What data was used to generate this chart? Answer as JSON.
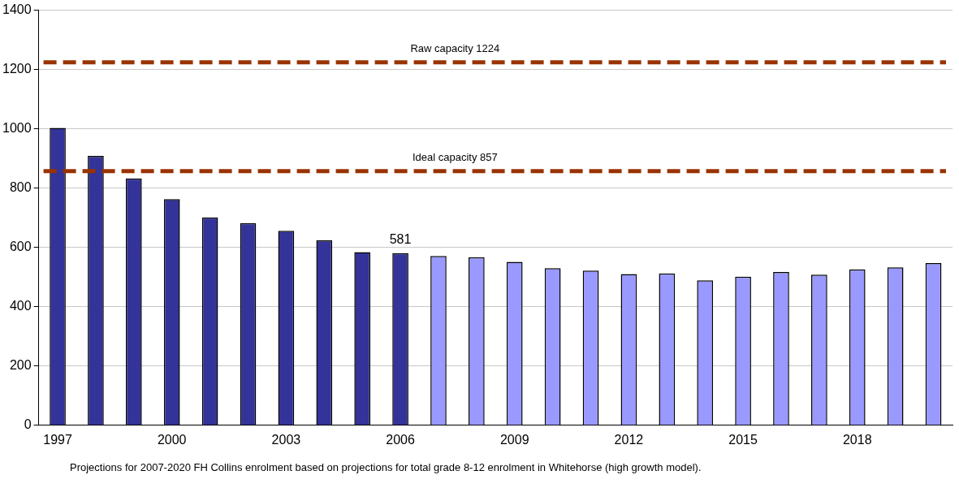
{
  "chart_data": {
    "type": "bar",
    "categories": [
      "1997",
      null,
      null,
      "2000",
      null,
      null,
      "2003",
      null,
      null,
      "2006",
      null,
      null,
      "2009",
      null,
      null,
      "2012",
      null,
      null,
      "2015",
      null,
      null,
      "2018",
      null,
      null
    ],
    "values": [
      1003,
      909,
      833,
      763,
      701,
      682,
      656,
      624,
      584,
      581,
      571,
      567,
      551,
      530,
      522,
      510,
      512,
      489,
      501,
      517,
      508,
      526,
      533,
      547
    ],
    "colors": [
      "#333399",
      "#333399",
      "#333399",
      "#333399",
      "#333399",
      "#333399",
      "#333399",
      "#333399",
      "#333399",
      "#333399",
      "#9999ff",
      "#9999ff",
      "#9999ff",
      "#9999ff",
      "#9999ff",
      "#9999ff",
      "#9999ff",
      "#9999ff",
      "#9999ff",
      "#9999ff",
      "#9999ff",
      "#9999ff",
      "#9999ff",
      "#9999ff"
    ],
    "value_labels": [
      null,
      null,
      null,
      null,
      null,
      null,
      null,
      null,
      null,
      "581",
      null,
      null,
      null,
      null,
      null,
      null,
      null,
      null,
      null,
      null,
      null,
      null,
      null,
      null
    ],
    "ylim": [
      0,
      1400
    ],
    "yticks": [
      0,
      200,
      400,
      600,
      800,
      1000,
      1200,
      1400
    ],
    "grid": "y",
    "legend": false,
    "ref_lines": [
      {
        "axis": "y",
        "value": 1224,
        "label": "Raw capacity 1224",
        "color": "#993300",
        "line_style": "dashed"
      },
      {
        "axis": "y",
        "value": 857,
        "label": "Ideal capacity 857",
        "color": "#993300",
        "line_style": "dashed"
      }
    ],
    "annotations": [
      "Projections for 2007-2020 FH Collins enrolment based on projections for total grade 8-12 enrolment  in Whitehorse (high growth model)."
    ]
  }
}
